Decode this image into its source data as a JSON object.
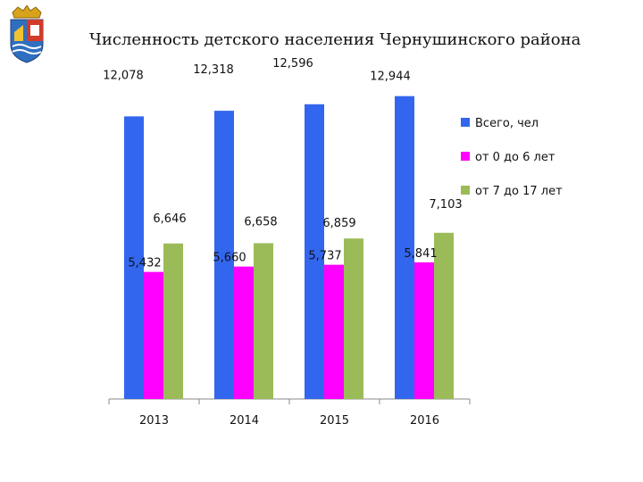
{
  "title": "Численность детского населения  Чернушинского района",
  "chart_data": {
    "type": "bar",
    "categories": [
      "2013",
      "2014",
      "2015",
      "2016"
    ],
    "series": [
      {
        "name": "Всего, чел",
        "color": "#3366ee",
        "values": [
          12078,
          12318,
          12596,
          12944
        ],
        "labels": [
          "12,078",
          "12,318",
          "12,596",
          "12,944"
        ]
      },
      {
        "name": "от 0 до 6 лет",
        "color": "#ff00ff",
        "values": [
          5432,
          5660,
          5737,
          5841
        ],
        "labels": [
          "5,432",
          "5,660",
          "5,737",
          "5,841"
        ]
      },
      {
        "name": "от 7 до 17 лет",
        "color": "#9bbb59",
        "values": [
          6646,
          6658,
          6859,
          7103
        ],
        "labels": [
          "6,646",
          "6,658",
          "6,859",
          "7,103"
        ]
      }
    ],
    "ylim": [
      0,
      14000
    ],
    "grid": false,
    "legend": "right"
  }
}
